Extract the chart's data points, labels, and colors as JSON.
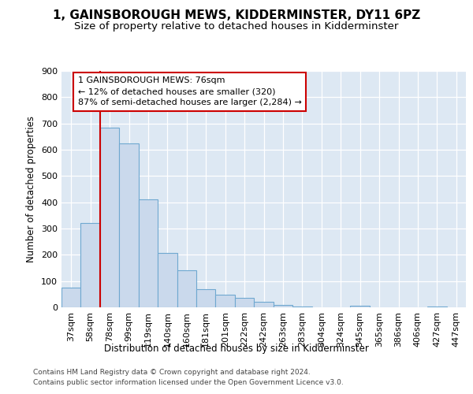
{
  "title": "1, GAINSBOROUGH MEWS, KIDDERMINSTER, DY11 6PZ",
  "subtitle": "Size of property relative to detached houses in Kidderminster",
  "xlabel": "Distribution of detached houses by size in Kidderminster",
  "ylabel": "Number of detached properties",
  "categories": [
    "37sqm",
    "58sqm",
    "78sqm",
    "99sqm",
    "119sqm",
    "140sqm",
    "160sqm",
    "181sqm",
    "201sqm",
    "222sqm",
    "242sqm",
    "263sqm",
    "283sqm",
    "304sqm",
    "324sqm",
    "345sqm",
    "365sqm",
    "386sqm",
    "406sqm",
    "427sqm",
    "447sqm"
  ],
  "values": [
    75,
    320,
    685,
    625,
    410,
    207,
    140,
    70,
    48,
    35,
    22,
    10,
    2,
    0,
    0,
    5,
    0,
    0,
    0,
    3,
    0
  ],
  "bar_fill_color": "#cad9ec",
  "bar_edge_color": "#6fa8d0",
  "bg_color": "#dde8f3",
  "vline_color": "#cc0000",
  "vline_index": 2.0,
  "annotation_line1": "1 GAINSBOROUGH MEWS: 76sqm",
  "annotation_line2": "← 12% of detached houses are smaller (320)",
  "annotation_line3": "87% of semi-detached houses are larger (2,284) →",
  "ylim_max": 900,
  "yticks": [
    0,
    100,
    200,
    300,
    400,
    500,
    600,
    700,
    800,
    900
  ],
  "footer_line1": "Contains HM Land Registry data © Crown copyright and database right 2024.",
  "footer_line2": "Contains public sector information licensed under the Open Government Licence v3.0.",
  "title_fontsize": 11,
  "subtitle_fontsize": 9.5,
  "axis_fontsize": 8.5,
  "tick_fontsize": 8,
  "footer_fontsize": 6.5
}
